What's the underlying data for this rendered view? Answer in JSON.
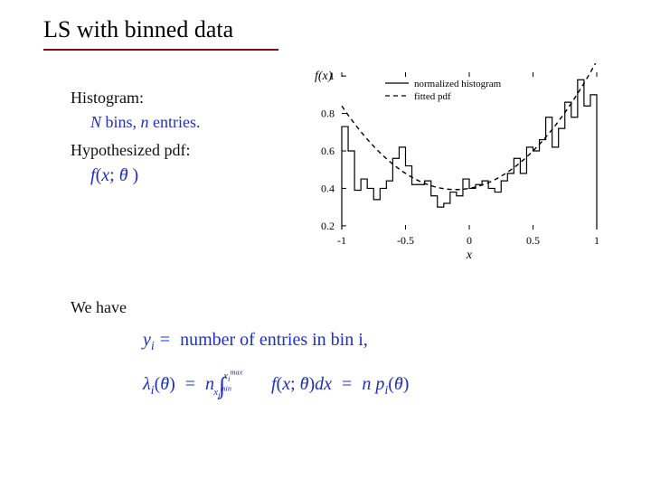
{
  "title": "LS with binned data",
  "left": {
    "hist_label": "Histogram:",
    "bins_text_N": "N",
    "bins_text_mid": " bins, ",
    "bins_text_n": "n",
    "bins_text_end": " entries.",
    "hyp_label": "Hypothesized pdf:",
    "pdf_formula": "f(x; θ⃗ )"
  },
  "lower": {
    "we_have": "We have",
    "eq1_lhs": "yᵢ",
    "eq1_rhs": " number of entries in bin i,",
    "eq2": "λᵢ(θ⃗) = n ∫ f(x; θ⃗) dx = n pᵢ(θ⃗)"
  },
  "chart": {
    "type": "histogram+curve",
    "xlim": [
      -1,
      1
    ],
    "ylim": [
      0.18,
      1.02
    ],
    "xticks": [
      -1,
      -0.5,
      0,
      0.5,
      1
    ],
    "yticks": [
      0.2,
      0.4,
      0.6,
      0.8,
      1
    ],
    "ylabel": "f(x)",
    "xlabel": "x",
    "legend": [
      "normalized histogram",
      "fitted pdf"
    ],
    "background_color": "#ffffff",
    "axis_color": "#000000",
    "tick_fontsize": 12,
    "label_fontsize": 14,
    "hist_color": "#000000",
    "hist_linewidth": 1.2,
    "curve_color": "#000000",
    "curve_dash": "5,4",
    "curve_linewidth": 1.4,
    "n_bins": 40,
    "bin_edges_x": [
      -1.0,
      -0.95,
      -0.9,
      -0.85,
      -0.8,
      -0.75,
      -0.7,
      -0.65,
      -0.6,
      -0.55,
      -0.5,
      -0.45,
      -0.4,
      -0.35,
      -0.3,
      -0.25,
      -0.2,
      -0.15,
      -0.1,
      -0.05,
      0.0,
      0.05,
      0.1,
      0.15,
      0.2,
      0.25,
      0.3,
      0.35,
      0.4,
      0.45,
      0.5,
      0.55,
      0.6,
      0.65,
      0.7,
      0.75,
      0.8,
      0.85,
      0.9,
      0.95,
      1.0
    ],
    "bin_heights": [
      0.73,
      0.6,
      0.39,
      0.45,
      0.4,
      0.34,
      0.4,
      0.44,
      0.56,
      0.62,
      0.52,
      0.42,
      0.42,
      0.44,
      0.36,
      0.3,
      0.32,
      0.38,
      0.36,
      0.45,
      0.4,
      0.42,
      0.44,
      0.4,
      0.38,
      0.44,
      0.48,
      0.56,
      0.48,
      0.62,
      0.6,
      0.66,
      0.78,
      0.62,
      0.72,
      0.86,
      0.78,
      0.98,
      0.84,
      0.9
    ],
    "curve_poly": {
      "a": 0.56,
      "b": 0.12,
      "c": 0.4
    }
  }
}
